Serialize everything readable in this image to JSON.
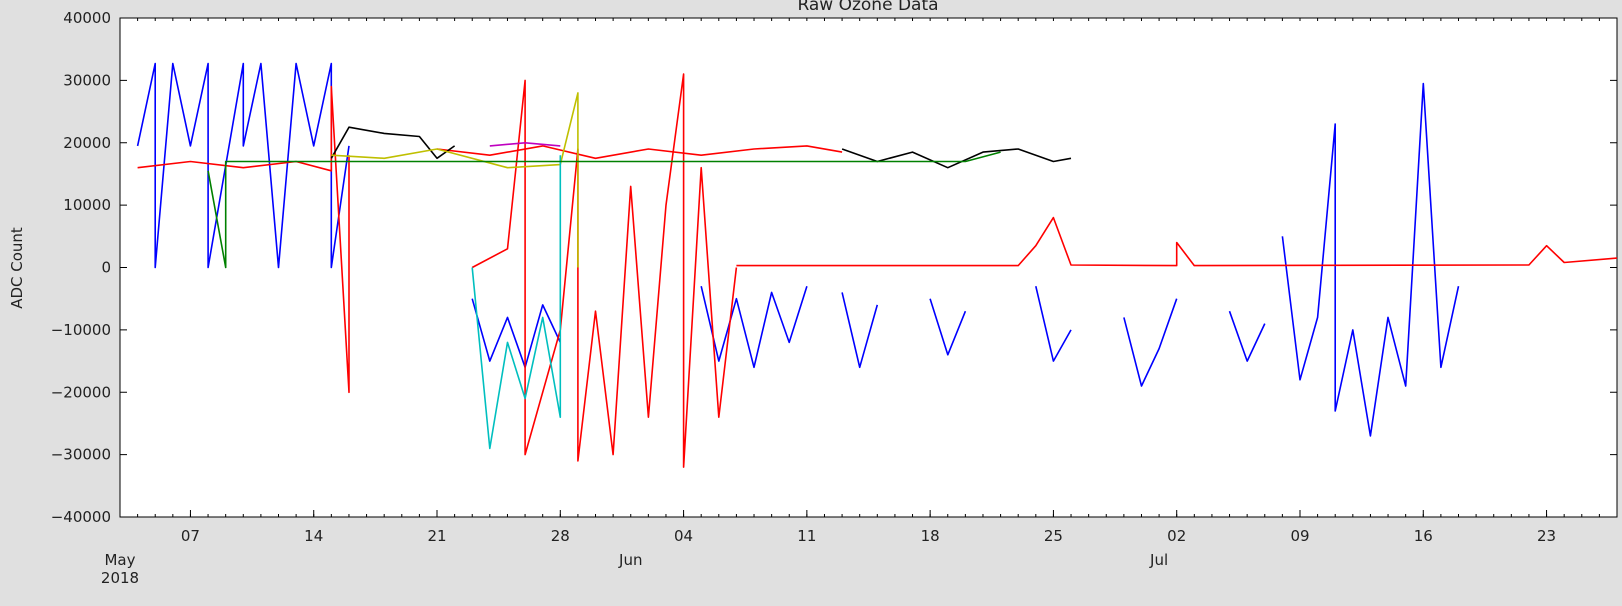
{
  "chart_data": {
    "type": "line",
    "title": "Raw Ozone Data",
    "ylabel": "ADC Count",
    "xlabel": "",
    "ylim": [
      -40000,
      40000
    ],
    "yticks": [
      -40000,
      -30000,
      -20000,
      -10000,
      0,
      10000,
      20000,
      30000,
      40000
    ],
    "xlim": [
      "2018-05-03",
      "2018-07-27"
    ],
    "day_ticks": [
      {
        "date": "2018-05-07",
        "label": "07"
      },
      {
        "date": "2018-05-14",
        "label": "14"
      },
      {
        "date": "2018-05-21",
        "label": "21"
      },
      {
        "date": "2018-05-28",
        "label": "28"
      },
      {
        "date": "2018-06-04",
        "label": "04"
      },
      {
        "date": "2018-06-11",
        "label": "11"
      },
      {
        "date": "2018-06-18",
        "label": "18"
      },
      {
        "date": "2018-06-25",
        "label": "25"
      },
      {
        "date": "2018-07-02",
        "label": "02"
      },
      {
        "date": "2018-07-09",
        "label": "09"
      },
      {
        "date": "2018-07-16",
        "label": "16"
      },
      {
        "date": "2018-07-23",
        "label": "23"
      }
    ],
    "month_ticks": [
      {
        "date": "2018-05-01",
        "label": "May\n2018"
      },
      {
        "date": "2018-06-01",
        "label": "Jun"
      },
      {
        "date": "2018-07-01",
        "label": "Jul"
      }
    ],
    "grid": false,
    "series": [
      {
        "color": "#0000ff",
        "points": [
          [
            "2018-05-04",
            19500
          ],
          [
            "2018-05-05",
            32700
          ],
          [
            "2018-05-05",
            0
          ],
          [
            "2018-05-06",
            32700
          ],
          [
            "2018-05-07",
            19500
          ],
          [
            "2018-05-08",
            32700
          ],
          [
            "2018-05-08",
            0
          ],
          [
            "2018-05-10",
            32700
          ],
          [
            "2018-05-10",
            19500
          ],
          [
            "2018-05-11",
            32700
          ],
          [
            "2018-05-12",
            0
          ],
          [
            "2018-05-13",
            32700
          ],
          [
            "2018-05-14",
            19500
          ],
          [
            "2018-05-15",
            32700
          ],
          [
            "2018-05-15",
            0
          ],
          [
            "2018-05-16",
            19500
          ]
        ]
      },
      {
        "color": "#0000ff",
        "points": [
          [
            "2018-05-23",
            -5000
          ],
          [
            "2018-05-24",
            -15000
          ],
          [
            "2018-05-25",
            -8000
          ],
          [
            "2018-05-26",
            -16000
          ],
          [
            "2018-05-27",
            -6000
          ],
          [
            "2018-05-28",
            -12000
          ]
        ]
      },
      {
        "color": "#0000ff",
        "points": [
          [
            "2018-06-05",
            -3000
          ],
          [
            "2018-06-06",
            -15000
          ],
          [
            "2018-06-07",
            -5000
          ],
          [
            "2018-06-08",
            -16000
          ],
          [
            "2018-06-09",
            -4000
          ],
          [
            "2018-06-10",
            -12000
          ],
          [
            "2018-06-11",
            -3000
          ]
        ]
      },
      {
        "color": "#0000ff",
        "points": [
          [
            "2018-06-13",
            -4000
          ],
          [
            "2018-06-14",
            -16000
          ],
          [
            "2018-06-15",
            -6000
          ]
        ]
      },
      {
        "color": "#0000ff",
        "points": [
          [
            "2018-06-18",
            -5000
          ],
          [
            "2018-06-19",
            -14000
          ],
          [
            "2018-06-20",
            -7000
          ]
        ]
      },
      {
        "color": "#0000ff",
        "points": [
          [
            "2018-06-24",
            -3000
          ],
          [
            "2018-06-25",
            -15000
          ],
          [
            "2018-06-26",
            -10000
          ]
        ]
      },
      {
        "color": "#0000ff",
        "points": [
          [
            "2018-06-29",
            -8000
          ],
          [
            "2018-06-30",
            -19000
          ],
          [
            "2018-07-01",
            -13000
          ],
          [
            "2018-07-02",
            -5000
          ]
        ]
      },
      {
        "color": "#0000ff",
        "points": [
          [
            "2018-07-05",
            -7000
          ],
          [
            "2018-07-06",
            -15000
          ],
          [
            "2018-07-07",
            -9000
          ]
        ]
      },
      {
        "color": "#0000ff",
        "points": [
          [
            "2018-07-08",
            5000
          ],
          [
            "2018-07-09",
            -18000
          ],
          [
            "2018-07-10",
            -8000
          ],
          [
            "2018-07-11",
            23000
          ],
          [
            "2018-07-11",
            -23000
          ],
          [
            "2018-07-12",
            -10000
          ],
          [
            "2018-07-13",
            -27000
          ],
          [
            "2018-07-14",
            -8000
          ],
          [
            "2018-07-15",
            -19000
          ],
          [
            "2018-07-16",
            29500
          ],
          [
            "2018-07-17",
            -16000
          ],
          [
            "2018-07-18",
            -3000
          ]
        ]
      },
      {
        "color": "#ff0000",
        "points": [
          [
            "2018-05-04",
            16000
          ],
          [
            "2018-05-07",
            17000
          ],
          [
            "2018-05-10",
            16000
          ],
          [
            "2018-05-13",
            17000
          ],
          [
            "2018-05-15",
            15500
          ],
          [
            "2018-05-15",
            29000
          ],
          [
            "2018-05-16",
            -20000
          ],
          [
            "2018-05-16",
            18000
          ]
        ]
      },
      {
        "color": "#ff0000",
        "points": [
          [
            "2018-05-21",
            19000
          ],
          [
            "2018-05-24",
            18000
          ],
          [
            "2018-05-27",
            19500
          ],
          [
            "2018-05-30",
            17500
          ],
          [
            "2018-06-02",
            19000
          ],
          [
            "2018-06-05",
            18000
          ],
          [
            "2018-06-08",
            19000
          ],
          [
            "2018-06-11",
            19500
          ],
          [
            "2018-06-13",
            18500
          ]
        ]
      },
      {
        "color": "#ff0000",
        "points": [
          [
            "2018-05-23",
            0
          ],
          [
            "2018-05-25",
            3000
          ],
          [
            "2018-05-26",
            30000
          ],
          [
            "2018-05-26",
            -30000
          ],
          [
            "2018-05-28",
            -10000
          ],
          [
            "2018-05-29",
            19000
          ],
          [
            "2018-05-29",
            -31000
          ],
          [
            "2018-05-30",
            -7000
          ],
          [
            "2018-05-31",
            -30000
          ],
          [
            "2018-06-01",
            13000
          ],
          [
            "2018-06-02",
            -24000
          ],
          [
            "2018-06-03",
            10000
          ],
          [
            "2018-06-04",
            31000
          ],
          [
            "2018-06-04",
            -32000
          ],
          [
            "2018-06-05",
            16000
          ],
          [
            "2018-06-06",
            -24000
          ],
          [
            "2018-06-07",
            0
          ]
        ]
      },
      {
        "color": "#ff0000",
        "points": [
          [
            "2018-06-07",
            300
          ],
          [
            "2018-06-23",
            300
          ],
          [
            "2018-06-24",
            3500
          ],
          [
            "2018-06-25",
            8000
          ],
          [
            "2018-06-26",
            400
          ],
          [
            "2018-07-02",
            300
          ],
          [
            "2018-07-02",
            4000
          ],
          [
            "2018-07-03",
            300
          ],
          [
            "2018-07-22",
            400
          ],
          [
            "2018-07-23",
            3500
          ],
          [
            "2018-07-24",
            800
          ],
          [
            "2018-07-27",
            1500
          ]
        ]
      },
      {
        "color": "#000000",
        "points": [
          [
            "2018-05-15",
            17500
          ],
          [
            "2018-05-16",
            22500
          ],
          [
            "2018-05-18",
            21500
          ],
          [
            "2018-05-20",
            21000
          ],
          [
            "2018-05-21",
            17500
          ],
          [
            "2018-05-22",
            19500
          ]
        ]
      },
      {
        "color": "#000000",
        "points": [
          [
            "2018-06-13",
            19000
          ],
          [
            "2018-06-15",
            17000
          ],
          [
            "2018-06-17",
            18500
          ],
          [
            "2018-06-19",
            16000
          ],
          [
            "2018-06-21",
            18500
          ],
          [
            "2018-06-23",
            19000
          ],
          [
            "2018-06-25",
            17000
          ],
          [
            "2018-06-26",
            17500
          ]
        ]
      },
      {
        "color": "#bfbf00",
        "points": [
          [
            "2018-05-15",
            18000
          ],
          [
            "2018-05-18",
            17500
          ],
          [
            "2018-05-21",
            19000
          ],
          [
            "2018-05-25",
            16000
          ],
          [
            "2018-05-28",
            16500
          ],
          [
            "2018-05-29",
            28000
          ],
          [
            "2018-05-29",
            0
          ]
        ]
      },
      {
        "color": "#00bfbf",
        "points": [
          [
            "2018-05-23",
            0
          ],
          [
            "2018-05-24",
            -29000
          ],
          [
            "2018-05-25",
            -12000
          ],
          [
            "2018-05-26",
            -21000
          ],
          [
            "2018-05-27",
            -8000
          ],
          [
            "2018-05-28",
            -24000
          ],
          [
            "2018-05-28",
            18000
          ]
        ]
      },
      {
        "color": "#008000",
        "points": [
          [
            "2018-05-08",
            15500
          ],
          [
            "2018-05-09",
            0
          ],
          [
            "2018-05-09",
            17000
          ],
          [
            "2018-06-20",
            17000
          ],
          [
            "2018-06-22",
            18500
          ]
        ]
      },
      {
        "color": "#bf00bf",
        "points": [
          [
            "2018-05-24",
            19500
          ],
          [
            "2018-05-26",
            20000
          ],
          [
            "2018-05-28",
            19500
          ]
        ]
      }
    ]
  }
}
